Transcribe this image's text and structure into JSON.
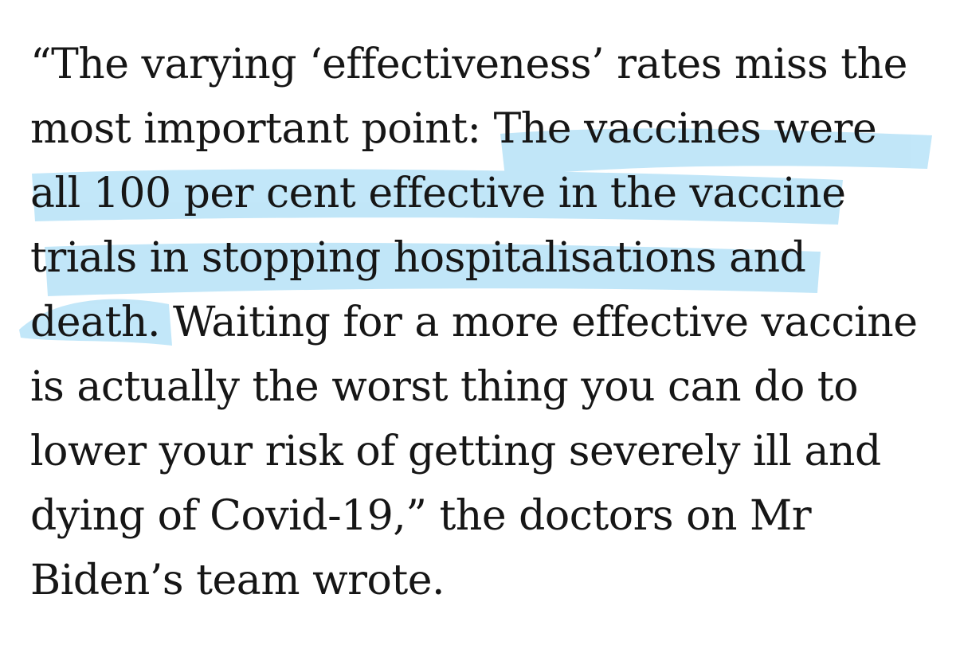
{
  "article": {
    "quote_lines": [
      "“The varying ‘effectiveness’ rates miss the",
      "most important point: The vaccines were",
      "all 100 per cent effective in the vaccine",
      "trials in stopping hospitalisations and",
      "death. Waiting for a more effective vaccine",
      "is actually the worst thing you can do to",
      "lower your risk of getting severely ill and",
      "dying of Covid-19,” the doctors on Mr",
      "Biden’s team wrote."
    ],
    "highlighted_text": "The vaccines were all 100 per cent effective in the vaccine trials in stopping hospitalisations and death."
  },
  "style": {
    "highlight_color": "#8fd3f4",
    "text_color": "#161616",
    "background": "#ffffff"
  }
}
